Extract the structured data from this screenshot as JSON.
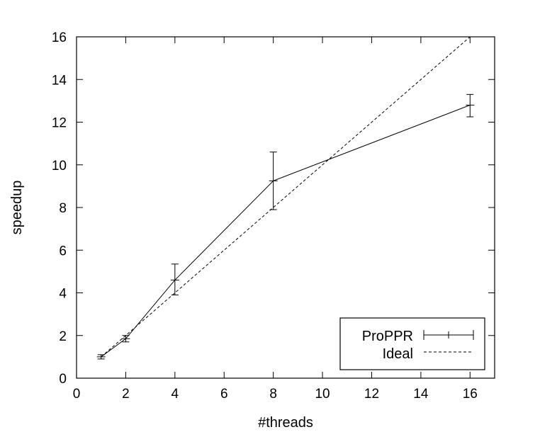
{
  "chart_data": {
    "type": "line",
    "xlabel": "#threads",
    "ylabel": "speedup",
    "xlim": [
      0,
      17
    ],
    "ylim": [
      0,
      16
    ],
    "xticks": [
      0,
      2,
      4,
      6,
      8,
      10,
      12,
      14,
      16
    ],
    "yticks": [
      0,
      2,
      4,
      6,
      8,
      10,
      12,
      14,
      16
    ],
    "x_tick_labels": [
      "0",
      "2",
      "4",
      "6",
      "8",
      "10",
      "12",
      "14",
      "16"
    ],
    "y_tick_labels": [
      "0",
      "2",
      "4",
      "6",
      "8",
      "10",
      "12",
      "14",
      "16"
    ],
    "grid": false,
    "legend_position": "bottom-right",
    "series": [
      {
        "name": "ProPPR",
        "style": "solid",
        "errorbars": true,
        "x": [
          1,
          2,
          4,
          8,
          16
        ],
        "y": [
          1.0,
          1.85,
          4.6,
          9.25,
          12.8
        ],
        "yerr_low": [
          0.9,
          1.7,
          3.9,
          7.9,
          12.25
        ],
        "yerr_high": [
          1.1,
          2.0,
          5.35,
          10.6,
          13.3
        ]
      },
      {
        "name": "Ideal",
        "style": "dashed",
        "errorbars": false,
        "x": [
          1,
          16
        ],
        "y": [
          1,
          16
        ]
      }
    ]
  }
}
